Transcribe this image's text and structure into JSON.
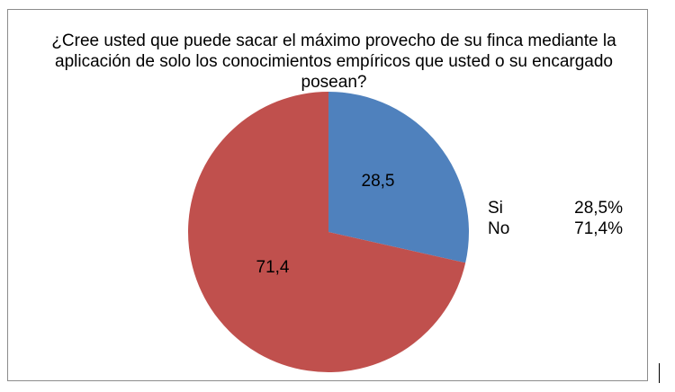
{
  "chart_data": {
    "type": "pie",
    "title": "¿Cree usted que puede sacar el máximo provecho de su finca mediante la aplicación de solo los conocimientos empíricos que usted o su encargado posean?",
    "slices": [
      {
        "label": "Si",
        "value": 28.5,
        "data_label": "28,5",
        "legend_value": "28,5%",
        "color": "#4f81bd"
      },
      {
        "label": "No",
        "value": 71.4,
        "data_label": "71,4",
        "legend_value": "71,4%",
        "color": "#c0504d"
      }
    ],
    "legend_position": "right"
  }
}
